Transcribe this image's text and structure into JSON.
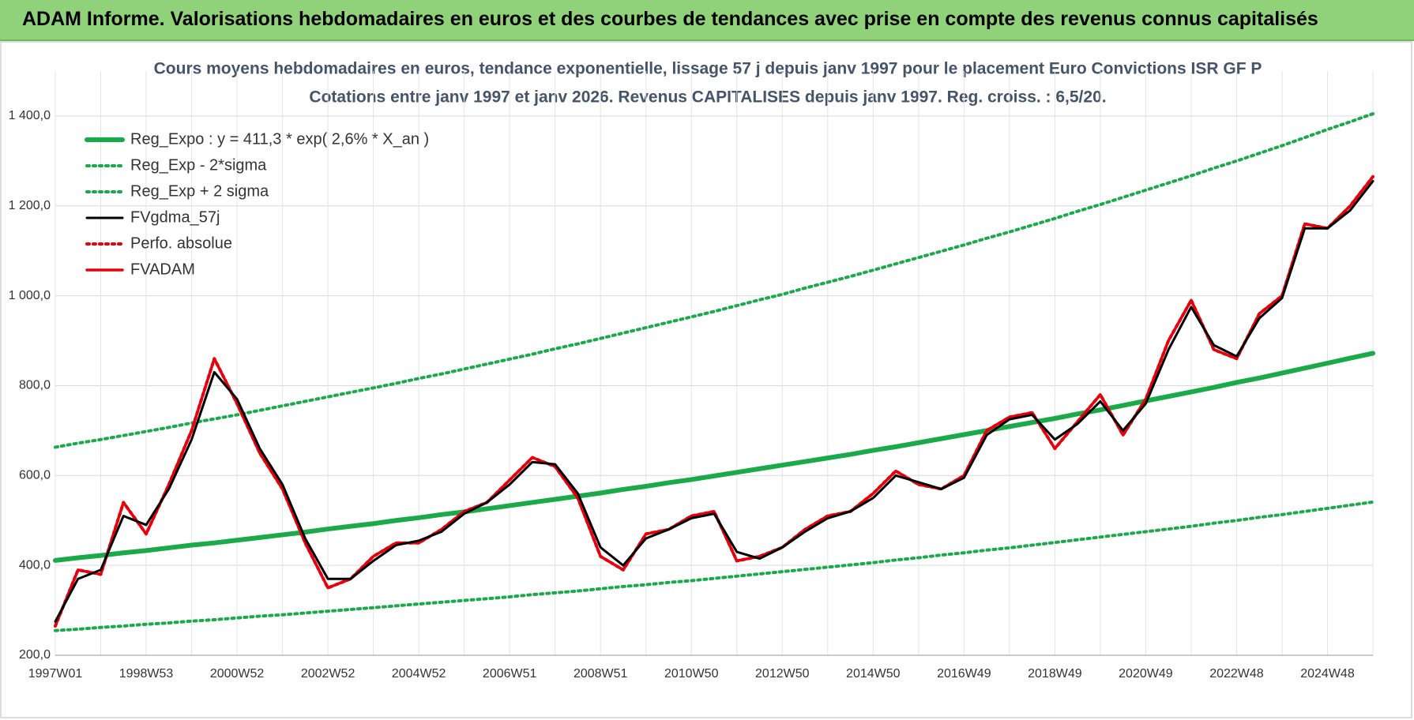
{
  "header": {
    "title": "ADAM Informe. Valorisations hebdomadaires en euros et des courbes de tendances avec prise en compte des revenus connus capitalisés"
  },
  "chart_data": {
    "type": "line",
    "title": [
      "Cours moyens hebdomadaires en euros, tendance exponentielle, lissage 57 j depuis janv 1997 pour le placement Euro Convictions ISR GF P",
      "Cotations entre janv 1997 et janv 2026. Revenus CAPITALISES depuis janv 1997. Reg. croiss. : 6,5/20."
    ],
    "categories": [
      "1997W01",
      null,
      null,
      null,
      "1998W53",
      null,
      null,
      null,
      "2000W52",
      null,
      null,
      null,
      "2002W52",
      null,
      null,
      null,
      "2004W52",
      null,
      null,
      null,
      "2006W51",
      null,
      null,
      null,
      "2008W51",
      null,
      null,
      null,
      "2010W50",
      null,
      null,
      null,
      "2012W50",
      null,
      null,
      null,
      "2014W50",
      null,
      null,
      null,
      "2016W49",
      null,
      null,
      null,
      "2018W49",
      null,
      null,
      null,
      "2020W49",
      null,
      null,
      null,
      "2022W48",
      null,
      null,
      null,
      "2024W48",
      null,
      null
    ],
    "ylim": [
      200,
      1500
    ],
    "yticks": [
      {
        "value": 200,
        "label": "200,0"
      },
      {
        "value": 400,
        "label": "400,0"
      },
      {
        "value": 600,
        "label": "600,0"
      },
      {
        "value": 800,
        "label": "800,0"
      },
      {
        "value": 1000,
        "label": "1 000,0"
      },
      {
        "value": 1200,
        "label": "1 200,0"
      },
      {
        "value": 1400,
        "label": "1 400,0"
      }
    ],
    "grid": true,
    "legend": "top-left",
    "series": [
      {
        "name": "Reg_Expo : y = 411,3 * exp( 2,6% *  X_an )",
        "color": "#1aaa4a",
        "style": "solid",
        "values": [
          411,
          417,
          422,
          428,
          433,
          439,
          445,
          450,
          456,
          462,
          468,
          474,
          481,
          487,
          493,
          500,
          506,
          513,
          519,
          526,
          533,
          540,
          547,
          554,
          561,
          569,
          576,
          584,
          591,
          599,
          607,
          615,
          623,
          631,
          639,
          647,
          656,
          664,
          673,
          682,
          691,
          700,
          709,
          718,
          727,
          737,
          746,
          756,
          766,
          776,
          786,
          796,
          807,
          817,
          828,
          839,
          850,
          861,
          872
        ]
      },
      {
        "name": "Reg_Exp - 2*sigma",
        "color": "#1aaa4a",
        "style": "dotted",
        "values": [
          255,
          258,
          262,
          265,
          269,
          272,
          276,
          279,
          283,
          287,
          290,
          294,
          298,
          302,
          306,
          310,
          314,
          318,
          322,
          326,
          330,
          335,
          339,
          343,
          348,
          353,
          357,
          362,
          366,
          371,
          376,
          381,
          386,
          391,
          396,
          401,
          406,
          412,
          417,
          423,
          428,
          434,
          439,
          445,
          451,
          457,
          463,
          469,
          475,
          481,
          487,
          494,
          500,
          507,
          513,
          520,
          527,
          534,
          541
        ]
      },
      {
        "name": "Reg_Exp + 2 sigma",
        "color": "#1aaa4a",
        "style": "dotted",
        "values": [
          663,
          672,
          680,
          689,
          698,
          707,
          717,
          726,
          735,
          745,
          755,
          765,
          775,
          785,
          795,
          805,
          816,
          826,
          837,
          848,
          859,
          870,
          882,
          893,
          905,
          917,
          929,
          941,
          953,
          965,
          978,
          991,
          1003,
          1017,
          1030,
          1043,
          1057,
          1071,
          1085,
          1099,
          1113,
          1128,
          1142,
          1157,
          1172,
          1188,
          1203,
          1219,
          1235,
          1251,
          1267,
          1284,
          1300,
          1317,
          1334,
          1352,
          1370,
          1387,
          1405
        ]
      },
      {
        "name": "FVgdma_57j",
        "color": "#000000",
        "style": "solid",
        "values": [
          275,
          370,
          390,
          510,
          490,
          570,
          680,
          830,
          770,
          660,
          580,
          460,
          370,
          370,
          410,
          445,
          455,
          475,
          515,
          540,
          580,
          630,
          625,
          560,
          440,
          400,
          460,
          480,
          505,
          515,
          430,
          415,
          440,
          475,
          505,
          520,
          550,
          600,
          585,
          570,
          595,
          690,
          725,
          735,
          680,
          715,
          765,
          700,
          760,
          880,
          975,
          890,
          865,
          950,
          995,
          1150,
          1150,
          1190,
          1255
        ]
      },
      {
        "name": "Perfo. absolue",
        "color": "#e8000b",
        "style": "dotted",
        "values": [
          265,
          390,
          380,
          540,
          470,
          580,
          700,
          860,
          760,
          650,
          570,
          450,
          350,
          370,
          420,
          450,
          450,
          480,
          520,
          540,
          590,
          640,
          620,
          550,
          420,
          390,
          470,
          480,
          510,
          520,
          410,
          420,
          440,
          480,
          510,
          520,
          560,
          610,
          580,
          570,
          600,
          700,
          730,
          740,
          660,
          720,
          780,
          690,
          770,
          900,
          990,
          880,
          860,
          960,
          1000,
          1160,
          1150,
          1200,
          1265
        ]
      },
      {
        "name": "FVADAM",
        "color": "#e8000b",
        "style": "solid",
        "values": [
          265,
          390,
          380,
          540,
          470,
          580,
          700,
          860,
          760,
          650,
          570,
          450,
          350,
          370,
          420,
          450,
          450,
          480,
          520,
          540,
          590,
          640,
          620,
          550,
          420,
          390,
          470,
          480,
          510,
          520,
          410,
          420,
          440,
          480,
          510,
          520,
          560,
          610,
          580,
          570,
          600,
          700,
          730,
          740,
          660,
          720,
          780,
          690,
          770,
          900,
          990,
          880,
          860,
          960,
          1000,
          1160,
          1150,
          1200,
          1265
        ]
      }
    ]
  }
}
